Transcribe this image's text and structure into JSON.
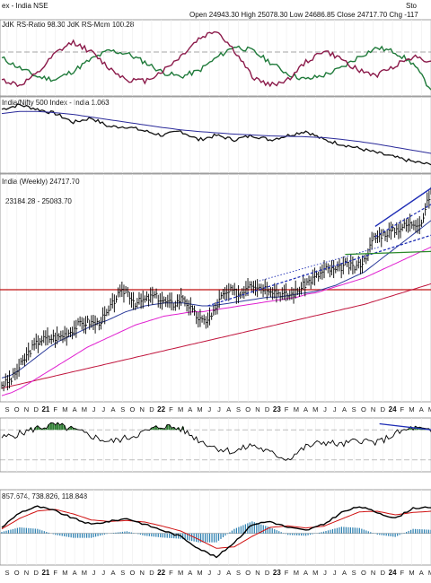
{
  "header": {
    "title": "ex - India NSE",
    "ohlc": "Open 24943.30  High 25078.30  Low 24686.85  Close 24717.70  Chg -117",
    "logo": "Sto"
  },
  "colors": {
    "rs_ratio": "#1f7a3a",
    "rs_mom": "#8b1a4a",
    "rel_line": "#111111",
    "rel_ma": "#2a2a9a",
    "price": "#000000",
    "ma20": "#2b3b9a",
    "ma50": "#e020d0",
    "ma200": "#c0143c",
    "support": "#c01010",
    "green_line": "#2a8a2a",
    "channel": "#1e2db5",
    "rsi": "#000000",
    "rsi_fill": "#2e7d32",
    "macd": "#000000",
    "macd_signal": "#d01010",
    "hist": "#2a7fb0"
  },
  "chart_data": [
    {
      "type": "line",
      "panel": "rrg",
      "legend": "JdK RS-Ratio 98.30  JdK RS-Mom 100.28",
      "x": [
        0,
        1,
        2,
        3,
        4,
        5,
        6,
        7,
        8,
        9,
        10,
        11,
        12,
        13,
        14,
        15,
        16,
        17,
        18,
        19,
        20,
        21,
        22,
        23,
        24
      ],
      "series": [
        {
          "name": "JdK RS-Ratio",
          "values": [
            100.5,
            99.8,
            99.2,
            99.0,
            99.6,
            100.4,
            101.0,
            100.8,
            100.2,
            99.5,
            99.2,
            99.6,
            100.5,
            101.3,
            101.0,
            100.2,
            99.4,
            99.0,
            99.3,
            99.8,
            100.6,
            101.2,
            100.9,
            100.1,
            98.3
          ]
        },
        {
          "name": "JdK RS-Mom",
          "values": [
            99.0,
            98.6,
            99.4,
            100.8,
            101.6,
            100.9,
            99.8,
            99.0,
            98.9,
            99.6,
            100.6,
            101.8,
            102.4,
            101.0,
            99.2,
            98.6,
            99.0,
            100.2,
            101.0,
            100.4,
            99.6,
            99.3,
            100.0,
            100.6,
            100.28
          ]
        }
      ],
      "ylim": [
        98,
        103
      ]
    },
    {
      "type": "line",
      "panel": "relative",
      "legend": "India/Nifty 500 Index - India 1.063",
      "x": [
        0,
        1,
        2,
        3,
        4,
        5,
        6,
        7,
        8,
        9,
        10,
        11,
        12,
        13,
        14,
        15,
        16,
        17,
        18,
        19,
        20,
        21,
        22,
        23,
        24
      ],
      "series": [
        {
          "name": "India/Nifty 500 Index - India",
          "values": [
            1.19,
            1.2,
            1.19,
            1.18,
            1.16,
            1.17,
            1.15,
            1.15,
            1.14,
            1.13,
            1.14,
            1.12,
            1.13,
            1.12,
            1.13,
            1.12,
            1.13,
            1.14,
            1.12,
            1.11,
            1.1,
            1.09,
            1.08,
            1.07,
            1.063
          ]
        },
        {
          "name": "MA",
          "values": [
            1.18,
            1.185,
            1.185,
            1.182,
            1.178,
            1.172,
            1.166,
            1.16,
            1.154,
            1.148,
            1.143,
            1.139,
            1.136,
            1.133,
            1.131,
            1.129,
            1.128,
            1.127,
            1.125,
            1.121,
            1.116,
            1.11,
            1.103,
            1.096,
            1.089
          ]
        }
      ],
      "ylim": [
        1.05,
        1.21
      ]
    },
    {
      "type": "ohlc",
      "panel": "price",
      "legend": "India (Weekly) 24717.70",
      "sublegend": "23184.28 - 25083.70",
      "x_ticks": [
        "S",
        "O",
        "N",
        "D",
        "21",
        "F",
        "M",
        "A",
        "M",
        "J",
        "J",
        "A",
        "S",
        "O",
        "N",
        "D",
        "22",
        "F",
        "M",
        "A",
        "M",
        "J",
        "J",
        "A",
        "S",
        "O",
        "N",
        "D",
        "23",
        "F",
        "M",
        "A",
        "M",
        "J",
        "J",
        "A",
        "S",
        "O",
        "N",
        "D",
        "24",
        "F",
        "M",
        "A",
        "M"
      ],
      "close": [
        11500,
        11900,
        12900,
        13900,
        14600,
        14700,
        14800,
        15100,
        15600,
        15800,
        15700,
        16300,
        17500,
        18000,
        17100,
        17300,
        17600,
        17200,
        17000,
        17500,
        16500,
        15800,
        16200,
        17500,
        17900,
        17700,
        18500,
        18200,
        18100,
        17800,
        17600,
        17900,
        18500,
        18900,
        19400,
        19300,
        19700,
        19500,
        20000,
        21500,
        21800,
        22000,
        22300,
        22500,
        22600,
        24717.7
      ],
      "ma20": [
        12000,
        12200,
        12600,
        13100,
        13600,
        14100,
        14500,
        14800,
        15100,
        15400,
        15700,
        15900,
        16200,
        16500,
        16700,
        16900,
        17000,
        17100,
        17100,
        17100,
        17000,
        16900,
        16900,
        17000,
        17100,
        17200,
        17300,
        17400,
        17500,
        17500,
        17600,
        17700,
        17800,
        17900,
        18100,
        18300,
        18600,
        18900,
        19200,
        19700,
        20200,
        20700,
        21200,
        21700,
        22200,
        22700
      ],
      "ma50": [
        10800,
        11000,
        11300,
        11700,
        12100,
        12500,
        12900,
        13300,
        13700,
        14100,
        14400,
        14700,
        15000,
        15300,
        15600,
        15800,
        16000,
        16200,
        16300,
        16400,
        16500,
        16500,
        16600,
        16700,
        16800,
        16900,
        17000,
        17100,
        17200,
        17300,
        17400,
        17500,
        17700,
        17800,
        18000,
        18200,
        18400,
        18600,
        18800,
        19100,
        19400,
        19700,
        20000,
        20300,
        20600,
        20900
      ],
      "ma200": [
        11300,
        11450,
        11600,
        11750,
        11900,
        12050,
        12200,
        12350,
        12500,
        12650,
        12800,
        12950,
        13100,
        13250,
        13400,
        13550,
        13700,
        13850,
        14000,
        14150,
        14300,
        14450,
        14600,
        14750,
        14900,
        15050,
        15200,
        15350,
        15500,
        15650,
        15800,
        15950,
        16100,
        16250,
        16400,
        16550,
        16700,
        16850,
        17000,
        17200,
        17400,
        17600,
        17800,
        18000,
        18200,
        18400
      ],
      "support_level": 18000,
      "ylim": [
        10500,
        25500
      ]
    },
    {
      "type": "line",
      "panel": "rsi",
      "x": [
        0,
        1,
        2,
        3,
        4,
        5,
        6,
        7,
        8,
        9,
        10,
        11,
        12,
        13,
        14,
        15,
        16,
        17,
        18,
        19,
        20,
        21,
        22,
        23,
        24
      ],
      "series": [
        {
          "name": "RSI",
          "values": [
            62,
            66,
            72,
            75,
            70,
            64,
            58,
            62,
            68,
            74,
            71,
            60,
            52,
            48,
            55,
            47,
            41,
            53,
            58,
            55,
            60,
            57,
            66,
            72,
            68
          ]
        }
      ],
      "ylim": [
        30,
        80
      ]
    },
    {
      "type": "line",
      "panel": "macd",
      "legend": "857.674, 738.826, 118.848",
      "x": [
        0,
        1,
        2,
        3,
        4,
        5,
        6,
        7,
        8,
        9,
        10,
        11,
        12,
        13,
        14,
        15,
        16,
        17,
        18,
        19,
        20,
        21,
        22,
        23,
        24
      ],
      "series": [
        {
          "name": "MACD",
          "values": [
            200,
            700,
            900,
            750,
            500,
            300,
            400,
            500,
            300,
            100,
            -100,
            -500,
            -800,
            -300,
            300,
            400,
            200,
            100,
            300,
            700,
            900,
            700,
            500,
            850,
            857.674
          ]
        },
        {
          "name": "Signal",
          "values": [
            150,
            500,
            750,
            800,
            650,
            450,
            400,
            430,
            380,
            240,
            80,
            -200,
            -500,
            -450,
            -100,
            200,
            250,
            180,
            240,
            480,
            720,
            740,
            620,
            700,
            738.826
          ]
        },
        {
          "name": "Histogram",
          "values": [
            50,
            200,
            150,
            -50,
            -150,
            -150,
            0,
            70,
            -80,
            -140,
            -180,
            -300,
            -300,
            150,
            400,
            200,
            -50,
            -80,
            60,
            220,
            180,
            -40,
            -120,
            150,
            118.848
          ]
        }
      ],
      "ylim": [
        -1000,
        1100
      ]
    }
  ]
}
